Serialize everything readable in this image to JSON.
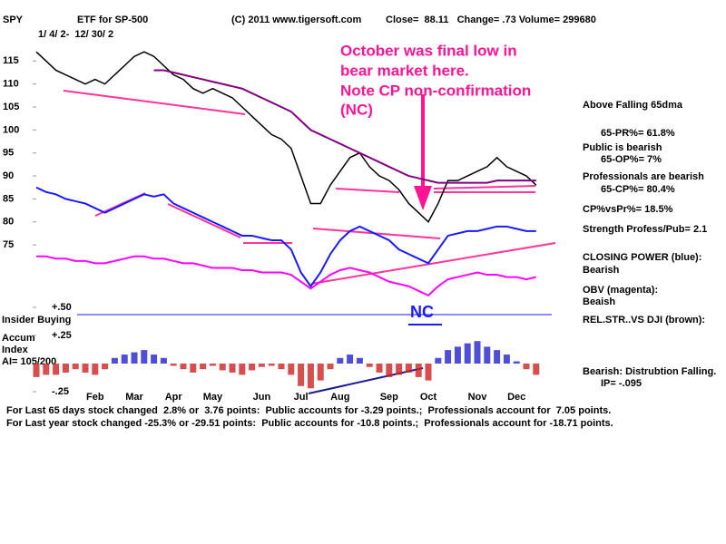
{
  "header": {
    "symbol": "SPY",
    "description": "ETF for SP-500",
    "copyright": "(C) 2011 www.tigersoft.com",
    "quote": "Close=  88.11   Change= .73 Volume= 299680",
    "date_range": "1/ 4/ 2-  12/ 30/ 2"
  },
  "annotation": [
    "October was final low in",
    "bear market here.",
    "Note CP non-confirmation",
    "(NC)"
  ],
  "nc_label": "NC",
  "sidebar": {
    "dma_status": "Above Falling 65dma",
    "pr": "65-PR%= 61.8%",
    "public": "Public is bearish",
    "op": "65-OP%= 7%",
    "professionals": "Professionals are bearish",
    "cp": "65-CP%= 80.4%",
    "cp_vs_pr": "CP%vsPr%=  18.5%",
    "strength": "Strength Profess/Pub= 2.1",
    "closing_power": "CLOSING POWER (blue):",
    "closing_power_status": "Bearish",
    "obv": "OBV (magenta):",
    "obv_status": "Beaish",
    "rel_str": "REL.STR..VS DJI (brown):",
    "accum_status": "Bearish: Distrubtion Falling.",
    "ip": "IP= -.095"
  },
  "left_labels": {
    "insider": "Insider Buying",
    "accum": "Accum",
    "index": "Index",
    "ai": "AI= 105/200"
  },
  "footer": [
    "For Last 65 days stock changed  2.8% or  3.76 points:  Public accounts for -3.29 points.;  Professionals account for  7.05 points.",
    "For Last year stock changed -25.3% or -29.51 points:  Public accounts for -10.8 points.;  Professionals account for -18.71 points."
  ],
  "chart_data": [
    {
      "type": "line",
      "categories": [
        null,
        null,
        null,
        null,
        null,
        null,
        "Feb",
        null,
        null,
        null,
        "Mar",
        null,
        null,
        null,
        "Apr",
        null,
        null,
        null,
        "May",
        null,
        null,
        null,
        null,
        "Jun",
        null,
        null,
        null,
        "Jul",
        null,
        null,
        null,
        "Aug",
        null,
        null,
        null,
        null,
        "Sep",
        null,
        null,
        null,
        "Oct",
        null,
        null,
        null,
        null,
        "Nov",
        null,
        null,
        null,
        "Dec",
        null,
        null
      ],
      "series": [
        {
          "name": "Price",
          "color": "#000000",
          "values": [
            117,
            115,
            113,
            112,
            111,
            110,
            111,
            110,
            112,
            114,
            116,
            117,
            116,
            114,
            112,
            111,
            109,
            108,
            109,
            108,
            107,
            105,
            103,
            101,
            99,
            98,
            96,
            90,
            84,
            84,
            88,
            91,
            94,
            95,
            92,
            90,
            89,
            87,
            84,
            82,
            80,
            84,
            89,
            89,
            90,
            91,
            92,
            94,
            92,
            91,
            90,
            88
          ]
        },
        {
          "name": "65dma",
          "color": "#800080",
          "values": [
            null,
            null,
            null,
            null,
            null,
            null,
            null,
            null,
            null,
            null,
            null,
            null,
            113,
            113,
            112.5,
            112,
            111.5,
            111,
            110.5,
            110,
            109.5,
            109,
            108,
            107,
            106,
            105,
            104,
            102,
            100,
            99,
            98,
            97,
            96,
            95,
            94,
            93,
            92,
            91,
            90,
            89.5,
            89,
            88.5,
            88.5,
            88.5,
            88.5,
            88.5,
            88.5,
            89,
            89,
            89,
            89,
            89
          ]
        },
        {
          "name": "Closing Power",
          "color": "#1a1aff",
          "values": [
            87.5,
            86.5,
            86,
            85,
            84.5,
            84,
            83,
            82,
            83,
            84,
            85,
            86,
            85.5,
            86,
            84,
            83,
            82,
            81,
            80,
            79,
            78,
            77,
            77,
            76.5,
            76,
            76,
            74,
            69,
            66,
            69,
            73,
            76,
            78,
            79,
            78,
            77,
            76,
            74,
            73,
            72,
            71,
            74,
            77,
            77.5,
            78,
            78,
            78.5,
            79,
            79,
            78.5,
            78,
            78
          ]
        },
        {
          "name": "OBV",
          "color": "#ff00ff",
          "values": [
            72.5,
            72.5,
            72,
            72,
            71.5,
            71.5,
            71,
            71,
            71.5,
            72,
            72.5,
            72.5,
            72,
            72,
            71.5,
            71,
            71,
            70.5,
            70,
            70,
            70,
            69.5,
            69.5,
            69,
            69,
            69,
            68.5,
            67,
            65.5,
            67,
            68.5,
            69.5,
            70,
            69.5,
            69,
            68,
            67,
            66.5,
            66,
            65,
            64,
            66,
            67.5,
            68,
            68.5,
            69,
            68.5,
            68.5,
            68,
            68,
            67.5,
            68
          ]
        }
      ],
      "ylim": [
        62,
        120
      ],
      "yticks": [
        75,
        80,
        85,
        90,
        95,
        100,
        105,
        110,
        115
      ],
      "grid": false
    },
    {
      "type": "bar",
      "values": [
        -0.12,
        -0.1,
        -0.1,
        -0.08,
        -0.05,
        -0.08,
        -0.1,
        -0.05,
        0.05,
        0.08,
        0.1,
        0.12,
        0.08,
        0.05,
        -0.02,
        -0.05,
        -0.08,
        -0.05,
        -0.02,
        -0.06,
        -0.08,
        -0.1,
        -0.06,
        -0.03,
        -0.02,
        -0.05,
        -0.1,
        -0.2,
        -0.22,
        -0.15,
        -0.05,
        0.05,
        0.08,
        0.05,
        -0.03,
        -0.08,
        -0.12,
        -0.1,
        -0.08,
        -0.12,
        -0.15,
        0.05,
        0.12,
        0.15,
        0.18,
        0.2,
        0.15,
        0.12,
        0.08,
        0.02,
        -0.05,
        -0.1
      ],
      "positive_color": "#2222cc",
      "negative_color": "#cc2222",
      "ylim": [
        -0.25,
        0.5
      ],
      "yticks": [
        {
          "value": -0.25,
          "label": "-.25"
        },
        {
          "value": 0.25,
          "label": "+.25"
        },
        {
          "value": 0.5,
          "label": "+.50"
        }
      ],
      "grid": false
    }
  ]
}
